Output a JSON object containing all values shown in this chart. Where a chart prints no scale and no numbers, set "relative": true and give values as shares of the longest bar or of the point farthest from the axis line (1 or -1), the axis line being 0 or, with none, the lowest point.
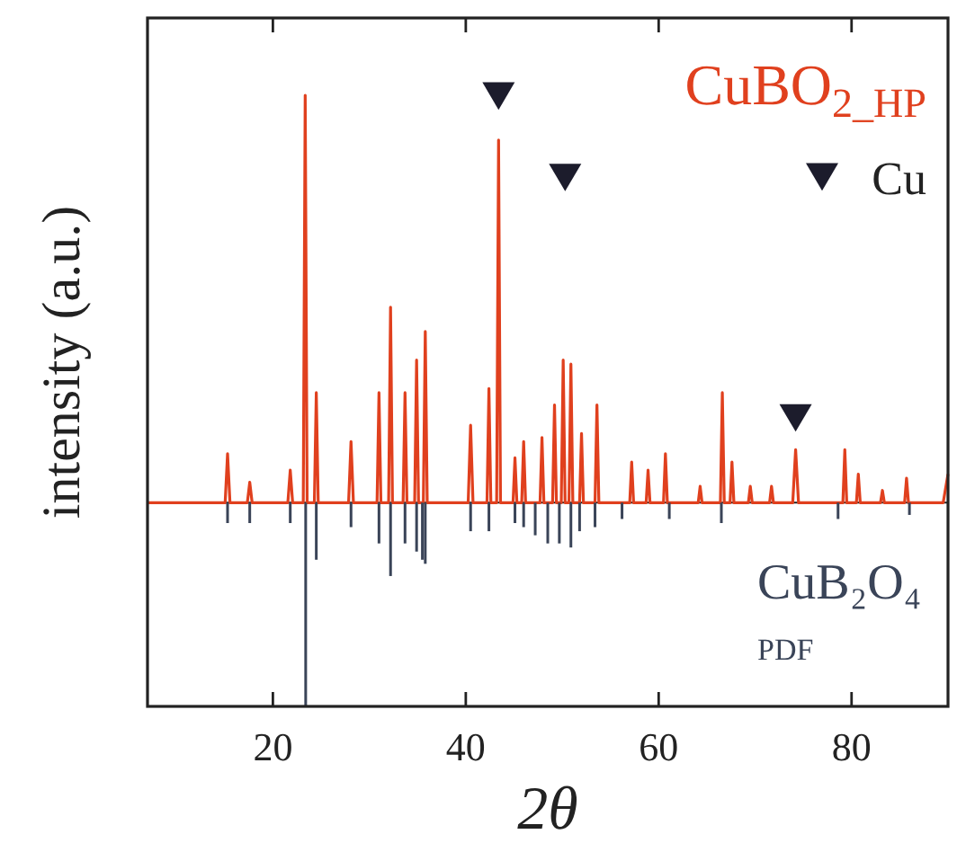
{
  "chart_data": {
    "type": "line",
    "relative": true,
    "xlabel": "2θ",
    "ylabel": "intensity (a.u.)",
    "xlim": [
      7,
      90
    ],
    "xticks": [
      20,
      40,
      60,
      80
    ],
    "legend": "top right",
    "series": [
      {
        "name": "CuBO$_{2_HP}$",
        "color": "#e0401e",
        "x": [
          7,
          15.05,
          15.3,
          15.55,
          17.35,
          17.6,
          17.85,
          21.55,
          21.8,
          22.05,
          23.15,
          23.35,
          23.55,
          24.3,
          24.5,
          24.7,
          27.85,
          28.1,
          28.35,
          30.8,
          31.0,
          31.2,
          32.0,
          32.2,
          32.4,
          33.5,
          33.7,
          33.9,
          34.7,
          34.9,
          35.1,
          35.6,
          35.8,
          36.0,
          40.25,
          40.5,
          40.75,
          42.2,
          42.4,
          42.6,
          43.2,
          43.4,
          43.6,
          44.9,
          45.1,
          45.3,
          45.8,
          46.0,
          46.2,
          47.7,
          47.9,
          48.1,
          49.0,
          49.2,
          49.4,
          49.9,
          50.1,
          50.3,
          50.7,
          50.9,
          51.1,
          51.8,
          52.0,
          52.2,
          53.4,
          53.6,
          53.8,
          57.0,
          57.2,
          57.4,
          58.7,
          58.9,
          59.1,
          60.5,
          60.7,
          60.9,
          64.1,
          64.3,
          64.5,
          66.4,
          66.6,
          66.8,
          67.4,
          67.6,
          67.8,
          69.3,
          69.5,
          69.7,
          71.5,
          71.7,
          71.9,
          73.9,
          74.2,
          74.5,
          79.1,
          79.3,
          79.5,
          80.5,
          80.7,
          80.9,
          83.0,
          83.2,
          83.4,
          85.5,
          85.7,
          85.9,
          89.5,
          90
        ],
        "values": [
          0,
          0,
          0.12,
          0,
          0,
          0.05,
          0,
          0,
          0.08,
          0,
          0,
          1.0,
          0,
          0,
          0.27,
          0,
          0,
          0.15,
          0,
          0,
          0.27,
          0,
          0,
          0.48,
          0,
          0,
          0.27,
          0,
          0,
          0.35,
          0,
          0,
          0.42,
          0,
          0,
          0.19,
          0,
          0,
          0.28,
          0,
          0,
          0.89,
          0,
          0,
          0.11,
          0,
          0,
          0.15,
          0,
          0,
          0.16,
          0,
          0,
          0.24,
          0,
          0,
          0.35,
          0,
          0,
          0.34,
          0,
          0,
          0.17,
          0,
          0,
          0.24,
          0,
          0,
          0.1,
          0,
          0,
          0.08,
          0,
          0,
          0.12,
          0,
          0,
          0.04,
          0,
          0,
          0.27,
          0,
          0,
          0.1,
          0,
          0,
          0.04,
          0,
          0,
          0.04,
          0,
          0,
          0.13,
          0,
          0,
          0.13,
          0,
          0,
          0.07,
          0,
          0,
          0.03,
          0,
          0,
          0.06,
          0,
          0,
          0.07
        ]
      },
      {
        "name": "CuB₂O₄$_{PDF}$",
        "type": "bar",
        "color": "#3a4458",
        "x": [
          15.3,
          17.6,
          21.8,
          23.4,
          24.5,
          28.1,
          31.0,
          32.2,
          33.7,
          34.9,
          35.5,
          35.8,
          40.5,
          42.4,
          45.1,
          46.0,
          47.2,
          48.5,
          49.7,
          50.9,
          51.8,
          53.4,
          56.2,
          61.1,
          66.5,
          78.6,
          86.0
        ],
        "values": [
          -0.05,
          -0.05,
          -0.05,
          -0.5,
          -0.14,
          -0.06,
          -0.1,
          -0.18,
          -0.1,
          -0.12,
          -0.14,
          -0.15,
          -0.07,
          -0.07,
          -0.05,
          -0.06,
          -0.08,
          -0.1,
          -0.1,
          -0.11,
          -0.07,
          -0.06,
          -0.04,
          -0.04,
          -0.05,
          -0.04,
          -0.03
        ]
      },
      {
        "name": "Cu",
        "type": "scatter",
        "color": "#1c1c2c",
        "marker": "triangle",
        "x": [
          43.4,
          50.3,
          74.2
        ],
        "values": [
          1.0,
          0.8,
          0.21
        ]
      }
    ]
  }
}
